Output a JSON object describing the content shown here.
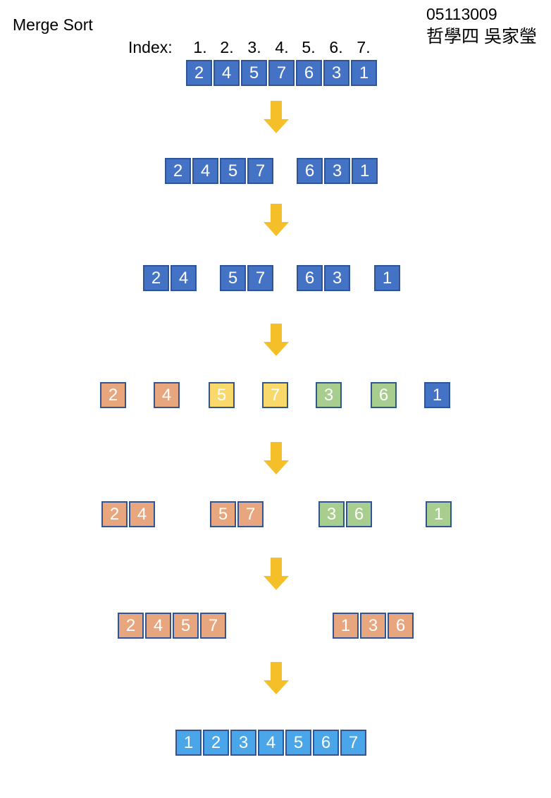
{
  "title": "Merge Sort",
  "student_id": "05113009",
  "author": "哲學四 吳家瑩",
  "index_label": "Index:",
  "indices": [
    "1.",
    "2.",
    "3.",
    "4.",
    "5.",
    "6.",
    "7."
  ],
  "colors": {
    "blue": "#4472c4",
    "orange": "#e7a67e",
    "yellow": "#f9d86c",
    "green": "#a7cd8f",
    "light_blue": "#4aa6e8",
    "arrow": "#f5bf2a",
    "border": "#2f5597"
  },
  "rows": [
    {
      "groups": [
        {
          "color": "blue",
          "values": [
            "2",
            "4",
            "5",
            "7",
            "6",
            "3",
            "1"
          ]
        }
      ]
    },
    {
      "groups": [
        {
          "color": "blue",
          "values": [
            "2",
            "4",
            "5",
            "7"
          ]
        },
        {
          "color": "blue",
          "values": [
            "6",
            "3",
            "1"
          ]
        }
      ]
    },
    {
      "groups": [
        {
          "color": "blue",
          "values": [
            "2",
            "4"
          ]
        },
        {
          "color": "blue",
          "values": [
            "5",
            "7"
          ]
        },
        {
          "color": "blue",
          "values": [
            "6",
            "3"
          ]
        },
        {
          "color": "blue",
          "values": [
            "1"
          ]
        }
      ]
    },
    {
      "groups": [
        {
          "color": "orange",
          "values": [
            "2"
          ]
        },
        {
          "color": "orange",
          "values": [
            "4"
          ]
        },
        {
          "color": "yellow",
          "values": [
            "5"
          ]
        },
        {
          "color": "yellow",
          "values": [
            "7"
          ]
        },
        {
          "color": "green",
          "values": [
            "3"
          ]
        },
        {
          "color": "green",
          "values": [
            "6"
          ]
        },
        {
          "color": "blue",
          "values": [
            "1"
          ]
        }
      ]
    },
    {
      "groups": [
        {
          "color": "orange",
          "values": [
            "2",
            "4"
          ]
        },
        {
          "color": "orange",
          "values": [
            "5",
            "7"
          ]
        },
        {
          "color": "green",
          "values": [
            "3",
            "6"
          ]
        },
        {
          "color": "green",
          "values": [
            "1"
          ]
        }
      ]
    },
    {
      "groups": [
        {
          "color": "orange",
          "values": [
            "2",
            "4",
            "5",
            "7"
          ]
        },
        {
          "color": "orange",
          "values": [
            "1",
            "3",
            "6"
          ]
        }
      ]
    },
    {
      "groups": [
        {
          "color": "light_blue",
          "values": [
            "1",
            "2",
            "3",
            "4",
            "5",
            "6",
            "7"
          ]
        }
      ]
    }
  ],
  "arrow_icon": "down-arrow-icon"
}
